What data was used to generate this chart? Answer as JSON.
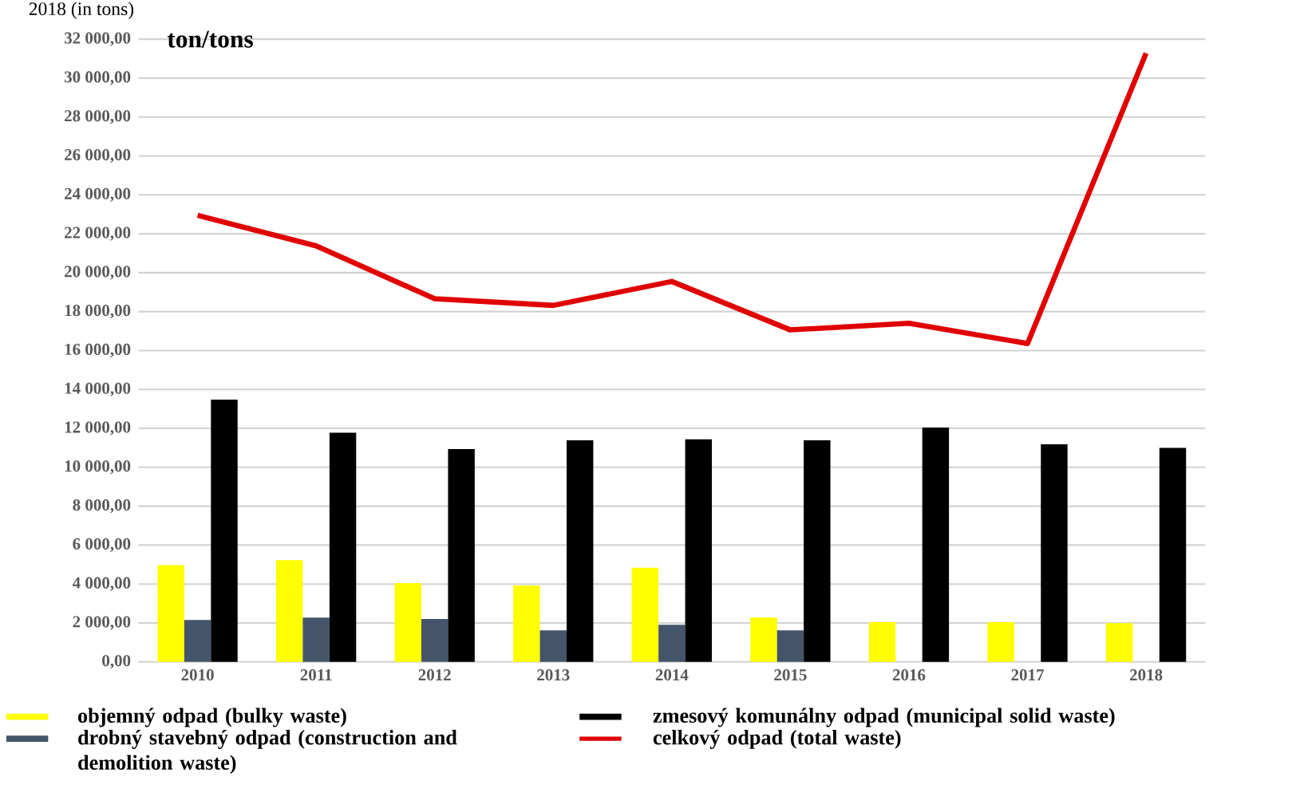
{
  "chart_data": {
    "type": "bar",
    "annotations": [
      "2018 (in tons)"
    ],
    "ylabel": "ton/tons",
    "categories": [
      "2010",
      "2011",
      "2012",
      "2013",
      "2014",
      "2015",
      "2016",
      "2017",
      "2018"
    ],
    "series": [
      {
        "name": "objemný odpad (bulky waste)",
        "color": "#ffff00",
        "values": [
          4970,
          5230,
          4050,
          3930,
          4840,
          2280,
          2040,
          2040,
          1990
        ]
      },
      {
        "name": "drobný stavebný odpad (construction and demolition waste)",
        "color": "#44546a",
        "values": [
          2150,
          2280,
          2200,
          1620,
          1910,
          1620,
          null,
          null,
          null
        ]
      },
      {
        "name": "zmesový komunálny odpad (municipal solid waste)",
        "color": "#000000",
        "values": [
          13480,
          11780,
          10940,
          11390,
          11440,
          11390,
          12040,
          11180,
          11000
        ]
      },
      {
        "name": "celkový odpad (total waste)",
        "type": "line",
        "color": "#e00000",
        "values": [
          22950,
          21380,
          18660,
          18320,
          19550,
          17060,
          17400,
          16360,
          31280
        ]
      }
    ],
    "ylim": [
      0,
      32000
    ],
    "yticks": [
      {
        "value": 0,
        "label": "0,00"
      },
      {
        "value": 2000,
        "label": "2 000,00"
      },
      {
        "value": 4000,
        "label": "4 000,00"
      },
      {
        "value": 6000,
        "label": "6 000,00"
      },
      {
        "value": 8000,
        "label": "8 000,00"
      },
      {
        "value": 10000,
        "label": "10 000,00"
      },
      {
        "value": 12000,
        "label": "12 000,00"
      },
      {
        "value": 14000,
        "label": "14 000,00"
      },
      {
        "value": 16000,
        "label": "16 000,00"
      },
      {
        "value": 18000,
        "label": "18 000,00"
      },
      {
        "value": 20000,
        "label": "20 000,00"
      },
      {
        "value": 22000,
        "label": "22 000,00"
      },
      {
        "value": 24000,
        "label": "24 000,00"
      },
      {
        "value": 26000,
        "label": "26 000,00"
      },
      {
        "value": 28000,
        "label": "28 000,00"
      },
      {
        "value": 30000,
        "label": "30 000,00"
      },
      {
        "value": 32000,
        "label": "32 000,00"
      }
    ],
    "grid": "y",
    "legend": "bottom",
    "line_style": "solid"
  }
}
